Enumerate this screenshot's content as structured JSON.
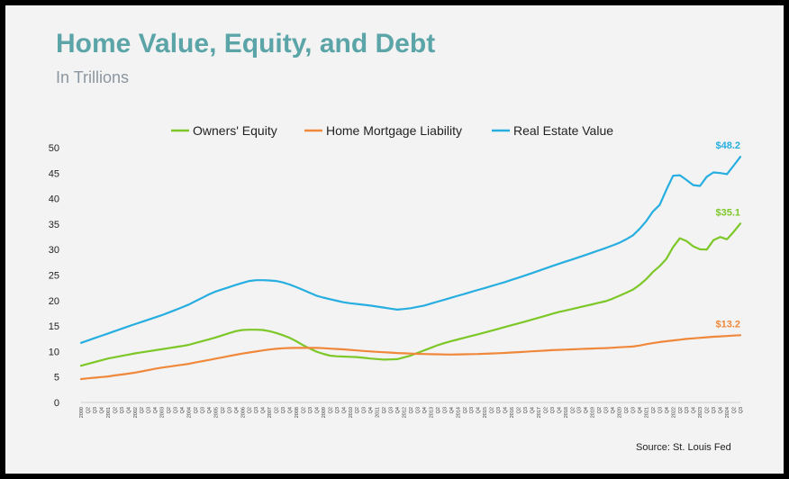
{
  "title": "Home Value, Equity, and Debt",
  "subtitle": "In Trillions",
  "source": "Source: St. Louis Fed",
  "chart_data": {
    "type": "line",
    "x_start": "2000 Q1",
    "x_end": "2024 Q2",
    "ylim": [
      0,
      50
    ],
    "yticks": [
      0,
      5,
      10,
      15,
      20,
      25,
      30,
      35,
      40,
      45,
      50
    ],
    "grid": false,
    "legend_position": "top",
    "series": [
      {
        "name": "Owners' Equity",
        "color": "#7dc728",
        "end_label": "$35.1",
        "anchors": [
          [
            0,
            7.2
          ],
          [
            4,
            8.6
          ],
          [
            8,
            9.6
          ],
          [
            12,
            10.4
          ],
          [
            16,
            11.2
          ],
          [
            20,
            12.6
          ],
          [
            24,
            14.2
          ],
          [
            26,
            14.3
          ],
          [
            28,
            14.2
          ],
          [
            30,
            13.5
          ],
          [
            32,
            12.5
          ],
          [
            34,
            11.0
          ],
          [
            36,
            9.8
          ],
          [
            38,
            9.1
          ],
          [
            40,
            9.0
          ],
          [
            42,
            8.9
          ],
          [
            44,
            8.6
          ],
          [
            46,
            8.4
          ],
          [
            48,
            8.5
          ],
          [
            50,
            9.2
          ],
          [
            52,
            10.2
          ],
          [
            54,
            11.2
          ],
          [
            56,
            12.0
          ],
          [
            60,
            13.3
          ],
          [
            64,
            14.7
          ],
          [
            68,
            16.1
          ],
          [
            72,
            17.6
          ],
          [
            76,
            18.8
          ],
          [
            80,
            20.0
          ],
          [
            84,
            22.3
          ],
          [
            86,
            24.5
          ],
          [
            87,
            26.0
          ],
          [
            88,
            27.0
          ],
          [
            89,
            28.5
          ],
          [
            90,
            31.0
          ],
          [
            91,
            32.5
          ],
          [
            92,
            31.5
          ],
          [
            93,
            30.5
          ],
          [
            94,
            30.0
          ],
          [
            95,
            30.0
          ],
          [
            96,
            32.0
          ],
          [
            97,
            32.5
          ],
          [
            98,
            32.0
          ],
          [
            99,
            33.5
          ],
          [
            100,
            35.1
          ]
        ]
      },
      {
        "name": "Home Mortgage Liability",
        "color": "#f0883c",
        "end_label": "$13.2",
        "anchors": [
          [
            0,
            4.6
          ],
          [
            4,
            5.1
          ],
          [
            8,
            5.8
          ],
          [
            12,
            6.8
          ],
          [
            16,
            7.5
          ],
          [
            20,
            8.5
          ],
          [
            24,
            9.5
          ],
          [
            28,
            10.3
          ],
          [
            30,
            10.6
          ],
          [
            32,
            10.7
          ],
          [
            36,
            10.7
          ],
          [
            40,
            10.4
          ],
          [
            44,
            10.0
          ],
          [
            48,
            9.7
          ],
          [
            52,
            9.5
          ],
          [
            56,
            9.4
          ],
          [
            60,
            9.5
          ],
          [
            64,
            9.7
          ],
          [
            68,
            10.0
          ],
          [
            72,
            10.3
          ],
          [
            76,
            10.5
          ],
          [
            80,
            10.7
          ],
          [
            84,
            11.0
          ],
          [
            86,
            11.5
          ],
          [
            88,
            11.9
          ],
          [
            92,
            12.5
          ],
          [
            96,
            12.9
          ],
          [
            100,
            13.2
          ]
        ]
      },
      {
        "name": "Real Estate Value",
        "color": "#27aee0",
        "end_label": "$48.2",
        "anchors": [
          [
            0,
            11.7
          ],
          [
            4,
            13.5
          ],
          [
            8,
            15.3
          ],
          [
            12,
            17.0
          ],
          [
            16,
            19.0
          ],
          [
            20,
            21.6
          ],
          [
            24,
            23.3
          ],
          [
            26,
            24.0
          ],
          [
            28,
            24.0
          ],
          [
            30,
            23.8
          ],
          [
            32,
            23.0
          ],
          [
            36,
            20.8
          ],
          [
            40,
            19.6
          ],
          [
            44,
            19.0
          ],
          [
            48,
            18.2
          ],
          [
            50,
            18.5
          ],
          [
            52,
            19.0
          ],
          [
            56,
            20.5
          ],
          [
            60,
            22.0
          ],
          [
            64,
            23.5
          ],
          [
            68,
            25.2
          ],
          [
            72,
            27.0
          ],
          [
            76,
            28.7
          ],
          [
            80,
            30.5
          ],
          [
            82,
            31.5
          ],
          [
            84,
            33.0
          ],
          [
            86,
            36.0
          ],
          [
            87,
            38.0
          ],
          [
            88,
            39.0
          ],
          [
            89,
            42.5
          ],
          [
            90,
            45.0
          ],
          [
            91,
            44.5
          ],
          [
            92,
            43.5
          ],
          [
            93,
            42.5
          ],
          [
            94,
            42.5
          ],
          [
            95,
            44.5
          ],
          [
            96,
            45.2
          ],
          [
            97,
            45.0
          ],
          [
            98,
            44.8
          ],
          [
            99,
            46.5
          ],
          [
            100,
            48.2
          ]
        ]
      }
    ]
  }
}
